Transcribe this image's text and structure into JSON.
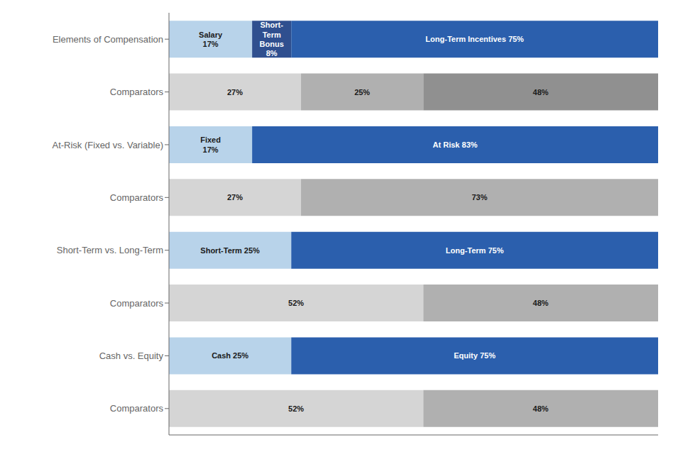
{
  "chart_data": {
    "type": "bar",
    "orientation": "horizontal",
    "stacked": true,
    "categories": [
      "Elements of Compensation",
      "Comparators",
      "At-Risk (Fixed vs. Variable)",
      "Comparators",
      "Short-Term vs. Long-Term",
      "Comparators",
      "Cash vs. Equity",
      "Comparators"
    ],
    "series": [
      {
        "values": [
          17,
          27,
          17,
          27,
          25,
          52,
          25,
          52
        ],
        "colors": [
          "#b8d3ea",
          "#d5d5d5",
          "#b8d3ea",
          "#d5d5d5",
          "#b8d3ea",
          "#d5d5d5",
          "#b8d3ea",
          "#d5d5d5"
        ],
        "value_labels": [
          "Salary\n17%",
          "27%",
          "Fixed\n17%",
          "27%",
          "Short-Term 25%",
          "52%",
          "Cash 25%",
          "52%"
        ]
      },
      {
        "values": [
          8,
          25,
          83,
          73,
          75,
          48,
          75,
          48
        ],
        "colors": [
          "#2f4f8f",
          "#b0b0b0",
          "#2b5fad",
          "#b0b0b0",
          "#2b5fad",
          "#b0b0b0",
          "#2b5fad",
          "#b0b0b0"
        ],
        "value_labels": [
          "Short-\nTerm\nBonus\n8%",
          "25%",
          "At Risk 83%",
          "73%",
          "Long-Term 75%",
          "48%",
          "Equity 75%",
          "48%"
        ]
      },
      {
        "values": [
          75,
          48,
          null,
          null,
          null,
          null,
          null,
          null
        ],
        "colors": [
          "#2b5fad",
          "#909090",
          null,
          null,
          null,
          null,
          null,
          null
        ],
        "value_labels": [
          "Long-Term Incentives 75%",
          "48%",
          null,
          null,
          null,
          null,
          null,
          null
        ]
      }
    ],
    "xlim": [
      0,
      100
    ],
    "grid": false,
    "data_labels": true,
    "tick_labels": "y"
  }
}
